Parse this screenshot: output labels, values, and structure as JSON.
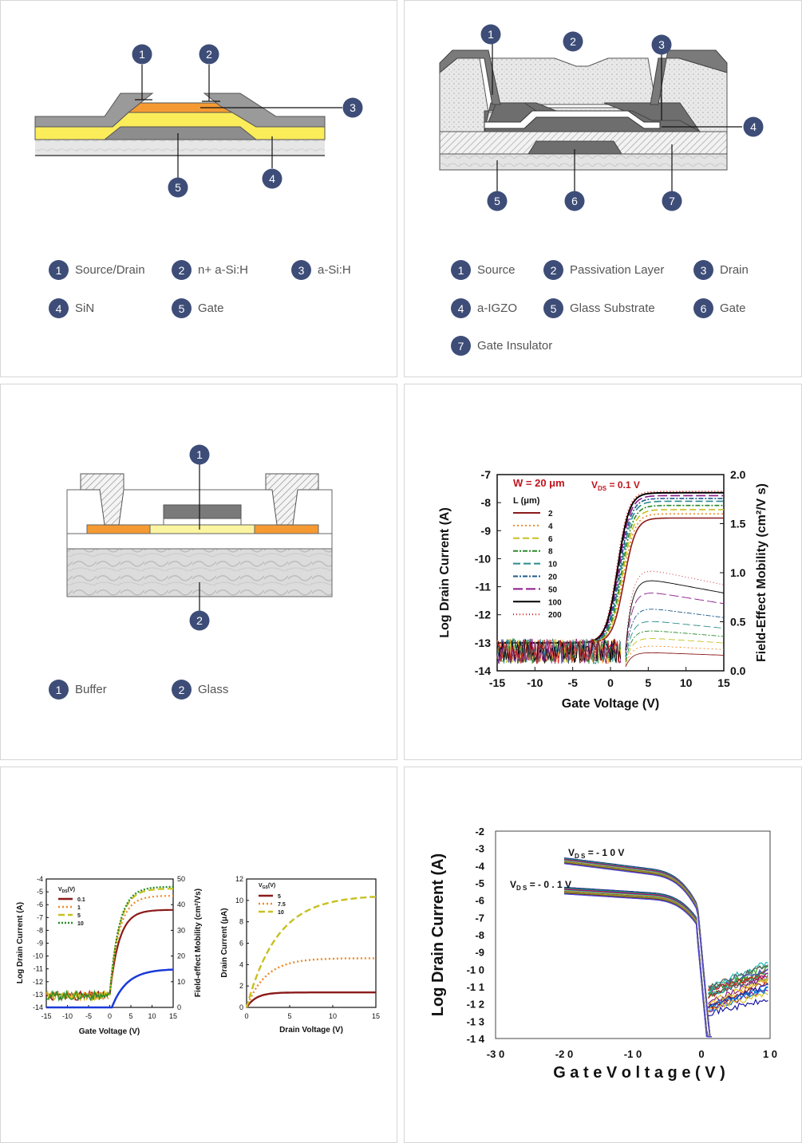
{
  "panel1": {
    "legend": [
      {
        "num": "1",
        "label": "Source/Drain"
      },
      {
        "num": "2",
        "label": "n+ a-Si:H"
      },
      {
        "num": "3",
        "label": "a-Si:H"
      },
      {
        "num": "4",
        "label": "SiN"
      },
      {
        "num": "5",
        "label": "Gate"
      }
    ]
  },
  "panel2": {
    "legend": [
      {
        "num": "1",
        "label": "Source"
      },
      {
        "num": "2",
        "label": "Passivation Layer"
      },
      {
        "num": "3",
        "label": "Drain"
      },
      {
        "num": "4",
        "label": "a-IGZO"
      },
      {
        "num": "5",
        "label": "Glass Substrate"
      },
      {
        "num": "6",
        "label": "Gate"
      },
      {
        "num": "7",
        "label": "Gate Insulator"
      }
    ]
  },
  "panel3": {
    "legend": [
      {
        "num": "1",
        "label": "Buffer"
      },
      {
        "num": "2",
        "label": "Glass"
      }
    ]
  },
  "chart_data": [
    {
      "type": "line",
      "xlabel": "Gate Voltage (V)",
      "ylabel": "Log Drain Current (A)",
      "y2label": "Field-Effect Mobility (cm²/V s)",
      "annotation_w": "W = 20 μm",
      "annotation_vds": "V",
      "annotation_vds_sub": "DS",
      "annotation_vds_val": " = 0.1 V",
      "legend_title": "L (μm)",
      "xticks": [
        "-15",
        "-10",
        "-5",
        "0",
        "5",
        "10",
        "15"
      ],
      "yticks": [
        "-7",
        "-8",
        "-9",
        "-10",
        "-11",
        "-12",
        "-13",
        "-14"
      ],
      "y2ticks": [
        "2.0",
        "1.5",
        "1.0",
        "0.5",
        "0.0"
      ],
      "xlim": [
        -15,
        15
      ],
      "ylim": [
        -14,
        -7
      ],
      "y2lim": [
        0,
        2
      ],
      "series": [
        {
          "name": "2",
          "color": "#8b1a1a",
          "dash": "",
          "ion": -8.55,
          "mu": 0.19
        },
        {
          "name": "4",
          "color": "#f08a24",
          "dash": "2,3",
          "ion": -8.4,
          "mu": 0.26
        },
        {
          "name": "6",
          "color": "#c8c020",
          "dash": "8,4",
          "ion": -8.25,
          "mu": 0.34
        },
        {
          "name": "8",
          "color": "#2a8a2a",
          "dash": "6,2,2,2",
          "ion": -8.1,
          "mu": 0.42
        },
        {
          "name": "10",
          "color": "#2a8a8a",
          "dash": "9,4",
          "ion": -7.95,
          "mu": 0.52
        },
        {
          "name": "20",
          "color": "#1e5a8a",
          "dash": "6,2,2,2",
          "ion": -7.85,
          "mu": 0.65
        },
        {
          "name": "50",
          "color": "#8a1a8a",
          "dash": "12,4",
          "ion": -7.75,
          "mu": 0.82
        },
        {
          "name": "100",
          "color": "#000000",
          "dash": "",
          "ion": -7.65,
          "mu": 0.95
        },
        {
          "name": "200",
          "color": "#d42020",
          "dash": "1,3",
          "ion": -7.6,
          "mu": 1.05
        }
      ]
    },
    {
      "type": "line",
      "xlabel": "Gate Voltage (V)",
      "ylabel": "Log Drain Current (A)",
      "y2label": "Field-effect Mobility (cm²/Vs)",
      "legend_title": "V",
      "legend_title_sub": "DS",
      "legend_title_unit": "(V)",
      "xticks": [
        "-15",
        "-10",
        "-5",
        "0",
        "5",
        "10",
        "15"
      ],
      "yticks": [
        "-4",
        "-5",
        "-6",
        "-7",
        "-8",
        "-9",
        "-10",
        "-11",
        "-12",
        "-13",
        "-14"
      ],
      "y2ticks": [
        "50",
        "40",
        "30",
        "20",
        "10",
        "0"
      ],
      "xlim": [
        -15,
        15
      ],
      "ylim": [
        -14,
        -4
      ],
      "y2lim": [
        0,
        50
      ],
      "series": [
        {
          "name": "0.1",
          "color": "#8b1a1a",
          "dash": "",
          "ion": -6.4
        },
        {
          "name": "1",
          "color": "#f08a24",
          "dash": "2,3",
          "ion": -5.3
        },
        {
          "name": "5",
          "color": "#c8c020",
          "dash": "8,4",
          "ion": -4.75
        },
        {
          "name": "10",
          "color": "#2a8a2a",
          "dash": "2,2",
          "ion": -4.6
        }
      ],
      "mobility_series": {
        "color": "#1a3ad8",
        "max": 15
      }
    },
    {
      "type": "line",
      "xlabel": "Drain Voltage (V)",
      "ylabel": "Drain Current (μA)",
      "legend_title": "V",
      "legend_title_sub": "GS",
      "legend_title_unit": "(V)",
      "xticks": [
        "0",
        "5",
        "10",
        "15"
      ],
      "yticks": [
        "12",
        "10",
        "8",
        "6",
        "4",
        "2",
        "0"
      ],
      "xlim": [
        0,
        15
      ],
      "ylim": [
        0,
        12
      ],
      "series": [
        {
          "name": "5",
          "color": "#8b1a1a",
          "dash": "",
          "sat": 1.4
        },
        {
          "name": "7.5",
          "color": "#f08a24",
          "dash": "2,3",
          "sat": 4.6
        },
        {
          "name": "10",
          "color": "#c8c020",
          "dash": "8,4",
          "sat": 10.5
        }
      ]
    },
    {
      "type": "line",
      "xlabel": "G a t e  V o l t a g e  ( V )",
      "ylabel": "Log Drain Current (A)",
      "annotation_hi": "V",
      "annotation_hi_sub": "D S",
      "annotation_hi_val": " =  - 1 0  V",
      "annotation_lo": "V",
      "annotation_lo_sub": "D S",
      "annotation_lo_val": " =  - 0 . 1  V",
      "xticks": [
        "-3 0",
        "-2 0",
        "-1 0",
        "0",
        "1 0"
      ],
      "yticks": [
        "-2",
        "-3",
        "-4",
        "-5",
        "-6",
        "-7",
        "-8",
        "-9",
        "-1 0",
        "-1 1",
        "-1 2",
        "-1 3",
        "-1 4"
      ],
      "xlim": [
        -30,
        10
      ],
      "ylim": [
        -14,
        -2
      ]
    }
  ]
}
